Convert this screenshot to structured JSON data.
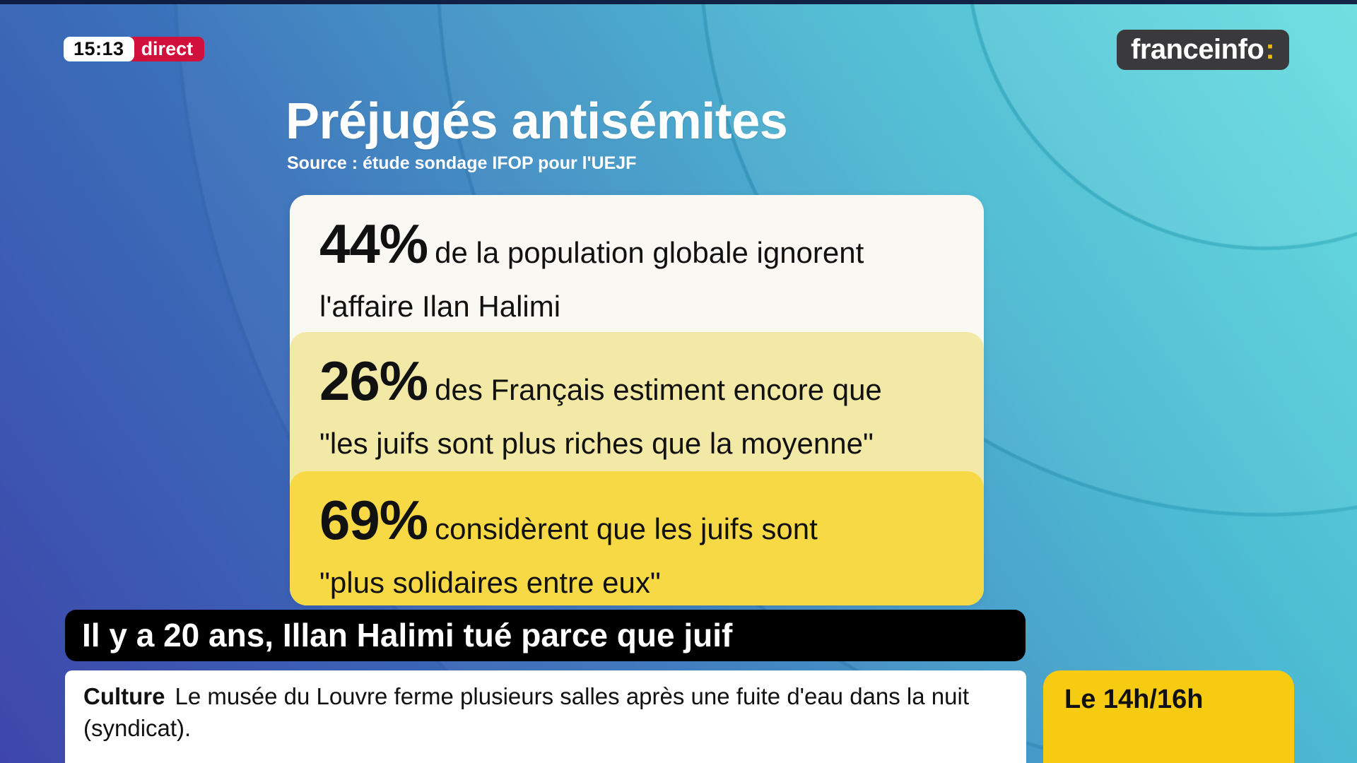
{
  "header": {
    "time": "15:13",
    "live_label": "direct",
    "channel": {
      "name": "franceinfo",
      "colon": ":"
    }
  },
  "infographic": {
    "title": "Préjugés antisémites",
    "source": "Source : étude sondage IFOP pour l'UEJF",
    "stats": [
      {
        "value": "44%",
        "text": "de la population globale ignorent\nl'affaire Ilan Halimi"
      },
      {
        "value": "26%",
        "text": "des Français estiment encore que\n\"les juifs sont plus riches que la moyenne\""
      },
      {
        "value": "69%",
        "text": "considèrent que les juifs sont\n\"plus solidaires entre eux\""
      }
    ]
  },
  "banner": {
    "headline": "Il y a 20 ans, Illan Halimi tué parce que juif"
  },
  "ticker": {
    "category": "Culture",
    "text": "Le musée du Louvre ferme plusieurs salles après une fuite d'eau dans la nuit (syndicat)."
  },
  "program_box": {
    "label": "Le 14h/16h"
  },
  "colors": {
    "background_bottom_left": "#3e46ab",
    "background_top_right": "#55dadc",
    "live_red": "#d1103c",
    "logo_dark": "#3a3a3c",
    "logo_colon_yellow": "#f0b90b",
    "card_white": "#f9f8f3",
    "card_pale_yellow": "#f3e9a6",
    "card_yellow": "#f6d944",
    "program_yellow": "#f6cb12",
    "banner_black": "#000000"
  },
  "chart_data": {
    "type": "table",
    "title": "Préjugés antisémites",
    "source": "Source : étude sondage IFOP pour l'UEJF",
    "unit": "%",
    "categories": [
      "de la population globale ignorent l'affaire Ilan Halimi",
      "des Français estiment encore que \"les juifs sont plus riches que la moyenne\"",
      "considèrent que les juifs sont \"plus solidaires entre eux\""
    ],
    "values": [
      44,
      26,
      69
    ]
  }
}
